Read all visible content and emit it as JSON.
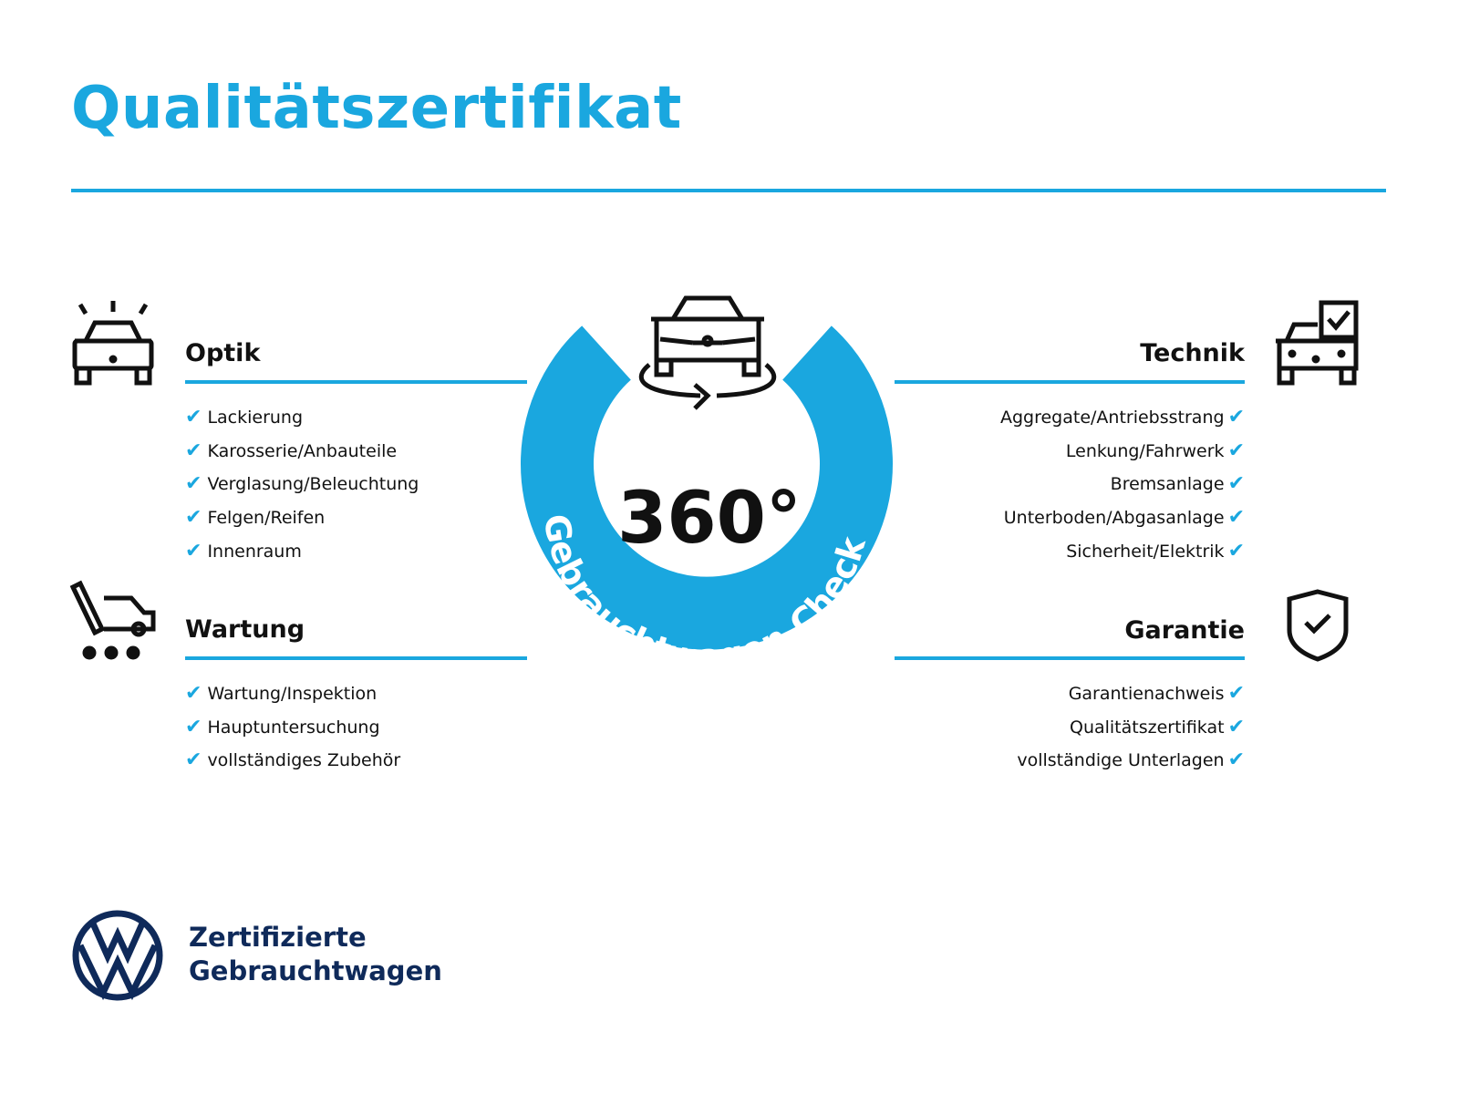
{
  "title": "Qualitätszertifikat",
  "accent_color": "#1aa7df",
  "center": {
    "big": "360°",
    "arc_text": "Gebrauchtwagen-Check",
    "icon": "car-rotate-icon"
  },
  "sections": {
    "optik": {
      "title": "Optik",
      "icon": "car-lights-icon",
      "items": [
        "Lackierung",
        "Karosserie/Anbauteile",
        "Verglasung/Beleuchtung",
        "Felgen/Reifen",
        "Innenraum"
      ]
    },
    "wartung": {
      "title": "Wartung",
      "icon": "service-truck-icon",
      "items": [
        "Wartung/Inspektion",
        "Hauptuntersuchung",
        "vollständiges Zubehör"
      ]
    },
    "technik": {
      "title": "Technik",
      "icon": "car-checkbox-icon",
      "items": [
        "Aggregate/Antriebsstrang",
        "Lenkung/Fahrwerk",
        "Bremsanlage",
        "Unterboden/Abgasanlage",
        "Sicherheit/Elektrik"
      ]
    },
    "garantie": {
      "title": "Garantie",
      "icon": "shield-check-icon",
      "items": [
        "Garantienachweis",
        "Qualitätszertifikat",
        "vollständige Unterlagen"
      ]
    }
  },
  "check_glyph": "✔",
  "footer": {
    "line1": "Zertifizierte",
    "line2": "Gebrauchtwagen",
    "logo": "VW"
  }
}
